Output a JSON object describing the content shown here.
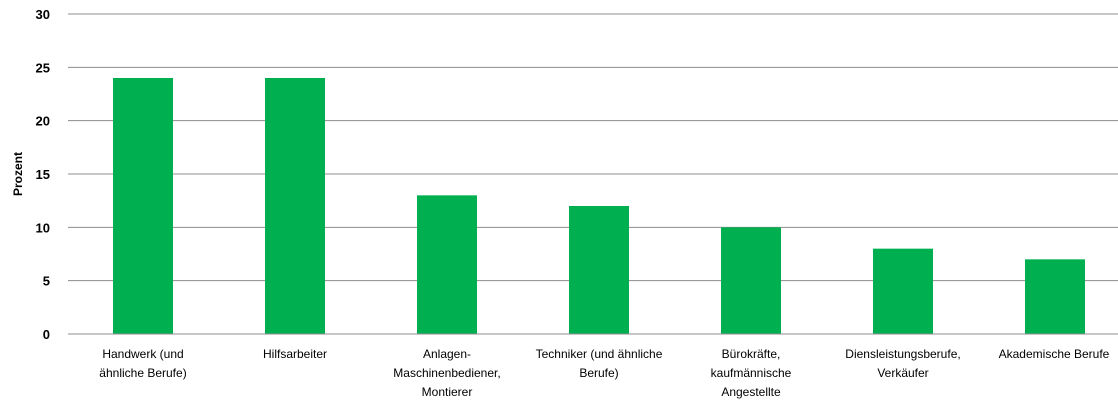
{
  "chart_data": {
    "type": "bar",
    "categories": [
      [
        "Handwerk (und",
        "ähnliche Berufe)"
      ],
      [
        "Hilfsarbeiter"
      ],
      [
        "Anlagen-",
        "Maschinenbediener,",
        "Montierer"
      ],
      [
        "Techniker (und ähnliche",
        "Berufe)"
      ],
      [
        "Bürokräfte,",
        "kaufmännische",
        "Angestellte"
      ],
      [
        "Diensleistungsberufe,",
        "Verkäufer"
      ],
      [
        "Akademische Berufe"
      ]
    ],
    "values": [
      24,
      24,
      13,
      12,
      10,
      8,
      7
    ],
    "ylabel": "Prozent",
    "ylim": [
      0,
      30
    ],
    "yticks": [
      0,
      5,
      10,
      15,
      20,
      25,
      30
    ],
    "grid": true,
    "colors": {
      "bar": "#00b050",
      "grid": "#8c8c8c",
      "axis": "#8c8c8c"
    }
  }
}
